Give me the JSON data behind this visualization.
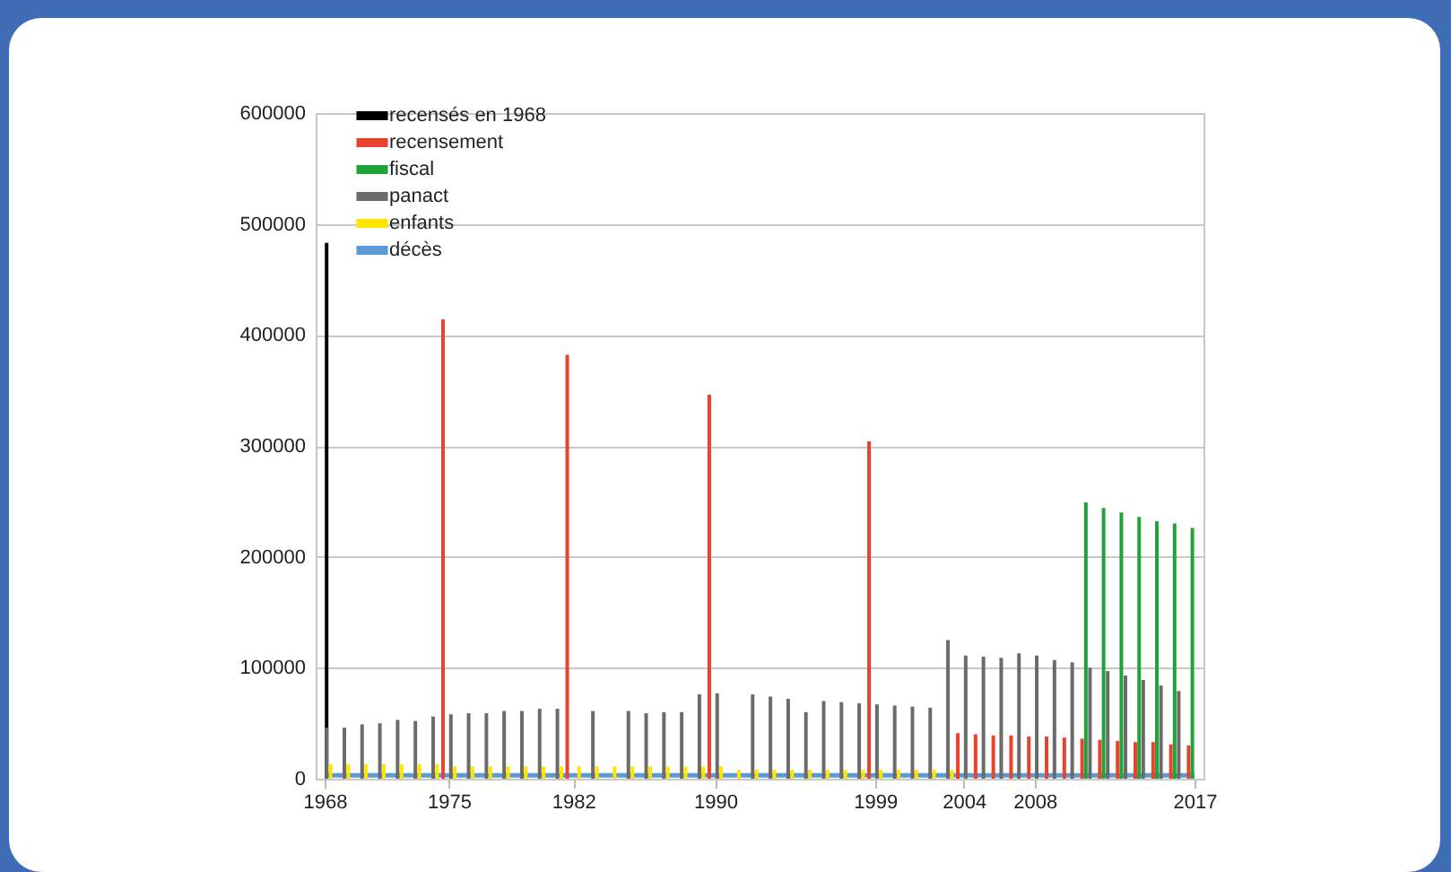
{
  "chart_data": {
    "type": "bar",
    "series": [
      {
        "name": "recensés en 1968",
        "color": "#000000",
        "x": [
          1968
        ],
        "values": [
          483000
        ]
      },
      {
        "name": "recensement",
        "color": "#e8432e",
        "x": [
          1975,
          1982,
          1990,
          1999,
          2004,
          2005,
          2006,
          2007,
          2008,
          2009,
          2010,
          2011,
          2012,
          2013,
          2014,
          2015,
          2016,
          2017
        ],
        "values": [
          414000,
          382000,
          346000,
          304000,
          41000,
          40000,
          39000,
          39000,
          38000,
          38000,
          37000,
          36000,
          35000,
          34000,
          33000,
          33000,
          31000,
          30000
        ]
      },
      {
        "name": "fiscal",
        "color": "#22a33a",
        "x": [
          2011,
          2012,
          2013,
          2014,
          2015,
          2016,
          2017
        ],
        "values": [
          249000,
          244000,
          240000,
          236000,
          232000,
          230000,
          226000
        ]
      },
      {
        "name": "panact",
        "color": "#6b6b6b",
        "x": [
          1968,
          1969,
          1970,
          1971,
          1972,
          1973,
          1974,
          1975,
          1976,
          1977,
          1978,
          1979,
          1980,
          1981,
          1983,
          1985,
          1986,
          1987,
          1988,
          1989,
          1990,
          1992,
          1993,
          1994,
          1995,
          1996,
          1997,
          1998,
          1999,
          2000,
          2001,
          2002,
          2003,
          2004,
          2005,
          2006,
          2007,
          2008,
          2009,
          2010,
          2011,
          2012,
          2013,
          2014,
          2015,
          2016
        ],
        "values": [
          46000,
          46000,
          49000,
          50000,
          53000,
          52000,
          56000,
          58000,
          59000,
          59000,
          61000,
          61000,
          63000,
          63000,
          61000,
          61000,
          59000,
          60000,
          60000,
          76000,
          77000,
          76000,
          74000,
          72000,
          60000,
          70000,
          69000,
          68000,
          67000,
          66000,
          65000,
          64000,
          125000,
          111000,
          110000,
          109000,
          113000,
          111000,
          107000,
          105000,
          100000,
          97000,
          93000,
          89000,
          84000,
          79000
        ]
      },
      {
        "name": "enfants",
        "color": "#ffe600",
        "x": [
          1968,
          1969,
          1970,
          1971,
          1972,
          1973,
          1974,
          1975,
          1976,
          1977,
          1978,
          1979,
          1980,
          1981,
          1982,
          1983,
          1984,
          1985,
          1986,
          1987,
          1988,
          1989,
          1990,
          1991,
          1992,
          1993,
          1994,
          1995,
          1996,
          1997,
          1998,
          1999,
          2000,
          2001,
          2002,
          2003
        ],
        "values": [
          13000,
          13000,
          13000,
          13000,
          13000,
          13000,
          13000,
          11000,
          11000,
          11000,
          11000,
          11000,
          11000,
          11000,
          11000,
          11000,
          11000,
          11000,
          11000,
          11000,
          11000,
          11000,
          11000,
          8000,
          8000,
          8000,
          8000,
          8000,
          8000,
          8000,
          8000,
          8000,
          8000,
          8000,
          8000,
          8000
        ]
      },
      {
        "name": "décès",
        "color": "#5b9bd5",
        "type": "line",
        "x": [
          1968,
          2017
        ],
        "values": [
          3000,
          3000
        ]
      }
    ],
    "xlim": [
      1968,
      2017
    ],
    "xticks": [
      1968,
      1975,
      1982,
      1990,
      1999,
      2004,
      2008,
      2017
    ],
    "ylim": [
      0,
      600000
    ],
    "yticks": [
      0,
      100000,
      200000,
      300000,
      400000,
      500000,
      600000
    ],
    "grid": "y",
    "legend": "top left"
  }
}
